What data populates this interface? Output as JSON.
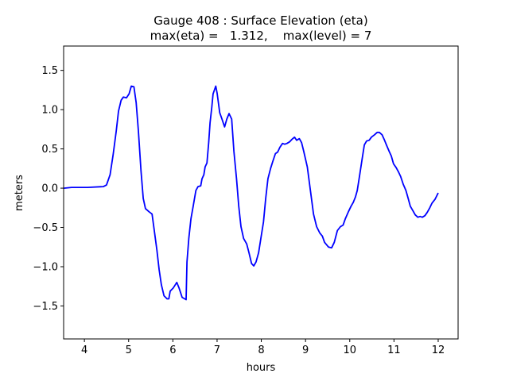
{
  "chart_data": {
    "type": "line",
    "title": "Gauge 408 : Surface Elevation (eta)",
    "subtitle": "max(eta) =   1.312,    max(level) = 7",
    "xlabel": "hours",
    "ylabel": "meters",
    "xlim": [
      3.53,
      12.45
    ],
    "ylim": [
      -1.92,
      1.81
    ],
    "xticks": [
      4,
      5,
      6,
      7,
      8,
      9,
      10,
      11,
      12
    ],
    "xtick_labels": [
      "4",
      "5",
      "6",
      "7",
      "8",
      "9",
      "10",
      "11",
      "12"
    ],
    "yticks": [
      -1.5,
      -1.0,
      -0.5,
      0.0,
      0.5,
      1.0,
      1.5
    ],
    "ytick_labels": [
      "−1.5",
      "−1.0",
      "−0.5",
      "0.0",
      "0.5",
      "1.0",
      "1.5"
    ],
    "grid": false,
    "line_color": "#0000ff",
    "series": [
      {
        "x": [
          3.53,
          3.71,
          4.07,
          4.43,
          4.5,
          4.58,
          4.65,
          4.72,
          4.77,
          4.83,
          4.88,
          4.95,
          5.01,
          5.06,
          5.12,
          5.17,
          5.22,
          5.28,
          5.33,
          5.38,
          5.46,
          5.53,
          5.58,
          5.64,
          5.69,
          5.74,
          5.8,
          5.87,
          5.91,
          5.94,
          6.01,
          6.09,
          6.14,
          6.21,
          6.3,
          6.32,
          6.36,
          6.41,
          6.46,
          6.52,
          6.57,
          6.63,
          6.66,
          6.7,
          6.73,
          6.77,
          6.81,
          6.84,
          6.88,
          6.91,
          6.97,
          7.0,
          7.06,
          7.11,
          7.17,
          7.22,
          7.27,
          7.33,
          7.38,
          7.44,
          7.49,
          7.54,
          7.6,
          7.67,
          7.72,
          7.78,
          7.83,
          7.88,
          7.94,
          7.99,
          8.05,
          8.1,
          8.15,
          8.21,
          8.26,
          8.32,
          8.37,
          8.42,
          8.48,
          8.53,
          8.58,
          8.64,
          8.69,
          8.75,
          8.8,
          8.86,
          8.91,
          8.96,
          9.04,
          9.11,
          9.18,
          9.25,
          9.32,
          9.38,
          9.43,
          9.52,
          9.59,
          9.65,
          9.72,
          9.79,
          9.85,
          9.9,
          9.97,
          10.03,
          10.08,
          10.13,
          10.17,
          10.22,
          10.28,
          10.33,
          10.38,
          10.44,
          10.49,
          10.56,
          10.62,
          10.67,
          10.73,
          10.78,
          10.83,
          10.89,
          10.94,
          10.99,
          11.05,
          11.1,
          11.15,
          11.21,
          11.27,
          11.32,
          11.37,
          11.43,
          11.48,
          11.54,
          11.59,
          11.64,
          11.7,
          11.75,
          11.81,
          11.86,
          11.93,
          12.0
        ],
        "y": [
          0.0,
          0.01,
          0.01,
          0.02,
          0.04,
          0.17,
          0.43,
          0.73,
          0.98,
          1.12,
          1.16,
          1.15,
          1.2,
          1.3,
          1.29,
          1.09,
          0.73,
          0.22,
          -0.13,
          -0.26,
          -0.3,
          -0.33,
          -0.54,
          -0.79,
          -1.04,
          -1.23,
          -1.37,
          -1.41,
          -1.41,
          -1.31,
          -1.27,
          -1.2,
          -1.27,
          -1.39,
          -1.42,
          -0.94,
          -0.64,
          -0.39,
          -0.23,
          -0.03,
          0.02,
          0.03,
          0.12,
          0.17,
          0.27,
          0.32,
          0.58,
          0.83,
          1.03,
          1.2,
          1.3,
          1.21,
          0.96,
          0.88,
          0.78,
          0.88,
          0.95,
          0.88,
          0.47,
          0.12,
          -0.23,
          -0.49,
          -0.64,
          -0.71,
          -0.82,
          -0.96,
          -0.99,
          -0.94,
          -0.82,
          -0.64,
          -0.43,
          -0.13,
          0.12,
          0.25,
          0.34,
          0.44,
          0.46,
          0.52,
          0.57,
          0.56,
          0.57,
          0.59,
          0.62,
          0.65,
          0.61,
          0.63,
          0.58,
          0.47,
          0.27,
          -0.03,
          -0.33,
          -0.49,
          -0.57,
          -0.61,
          -0.69,
          -0.75,
          -0.76,
          -0.69,
          -0.54,
          -0.49,
          -0.47,
          -0.39,
          -0.3,
          -0.23,
          -0.18,
          -0.11,
          -0.03,
          0.15,
          0.37,
          0.55,
          0.6,
          0.61,
          0.65,
          0.68,
          0.71,
          0.71,
          0.68,
          0.62,
          0.55,
          0.47,
          0.41,
          0.31,
          0.26,
          0.21,
          0.15,
          0.05,
          -0.03,
          -0.13,
          -0.23,
          -0.29,
          -0.34,
          -0.37,
          -0.36,
          -0.37,
          -0.35,
          -0.31,
          -0.25,
          -0.19,
          -0.14,
          -0.06
        ]
      }
    ]
  }
}
